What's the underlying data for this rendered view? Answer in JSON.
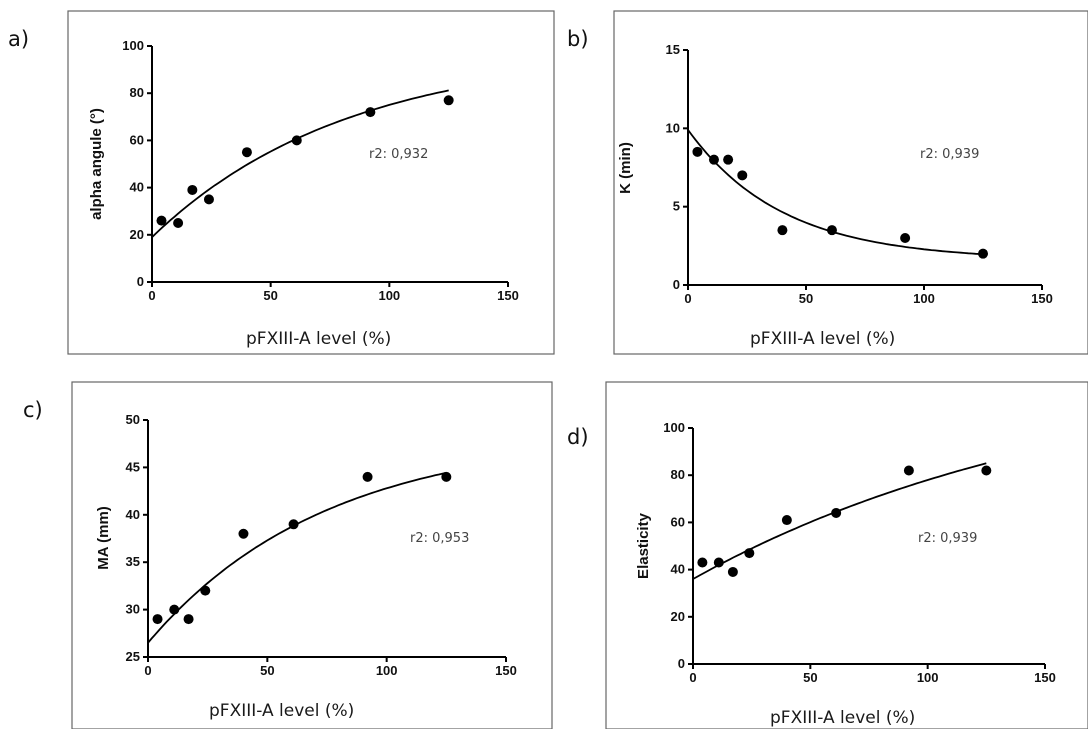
{
  "chart_data": [
    {
      "type": "scatter",
      "panel_label": "a)",
      "title": "",
      "xlabel": "pFXIII-A level (%)",
      "ylabel": "alpha angule (°)",
      "xlim": [
        0,
        150
      ],
      "ylim": [
        0,
        100
      ],
      "xticks": [
        0,
        50,
        100,
        150
      ],
      "yticks": [
        0,
        20,
        40,
        60,
        80,
        100
      ],
      "points": {
        "x": [
          4,
          11,
          17,
          24,
          40,
          61,
          92,
          125
        ],
        "y": [
          26,
          25,
          39,
          35,
          55,
          60,
          72,
          77
        ]
      },
      "fit": {
        "type": "one-phase exponential",
        "x_range": [
          0,
          125
        ],
        "y0": 19,
        "plateau": 98.5,
        "k": 0.0122
      },
      "annotation": "r2: 0,932",
      "grid": false
    },
    {
      "type": "scatter",
      "panel_label": "b)",
      "title": "",
      "xlabel": "pFXIII-A level (%)",
      "ylabel": "K (min)",
      "xlim": [
        0,
        150
      ],
      "ylim": [
        0,
        15
      ],
      "xticks": [
        0,
        50,
        100,
        150
      ],
      "yticks": [
        0,
        5,
        10,
        15
      ],
      "points": {
        "x": [
          4,
          11,
          17,
          23,
          40,
          61,
          92,
          125
        ],
        "y": [
          8.5,
          8,
          8,
          7,
          3.5,
          3.5,
          3,
          2
        ]
      },
      "fit": {
        "type": "one-phase exponential",
        "x_range": [
          0,
          125
        ],
        "y0": 9.9,
        "plateau": 1.6,
        "k": 0.025
      },
      "annotation": "r2: 0,939",
      "grid": false
    },
    {
      "type": "scatter",
      "panel_label": "c)",
      "title": "",
      "xlabel": "pFXIII-A level (%)",
      "ylabel": "MA (mm)",
      "xlim": [
        0,
        150
      ],
      "ylim": [
        25,
        50
      ],
      "xticks": [
        0,
        50,
        100,
        150
      ],
      "yticks": [
        25,
        30,
        35,
        40,
        45,
        50
      ],
      "points": {
        "x": [
          4,
          11,
          17,
          24,
          40,
          61,
          92,
          125
        ],
        "y": [
          29,
          30,
          29,
          32,
          38,
          39,
          44,
          44
        ]
      },
      "fit": {
        "type": "one-phase exponential",
        "x_range": [
          0,
          125
        ],
        "y0": 26.5,
        "plateau": 48.5,
        "k": 0.0135
      },
      "annotation": "r2: 0,953",
      "grid": false
    },
    {
      "type": "scatter",
      "panel_label": "d)",
      "title": "",
      "xlabel": "pFXIII-A level (%)",
      "ylabel": "Elasticity",
      "xlim": [
        0,
        150
      ],
      "ylim": [
        0,
        100
      ],
      "xticks": [
        0,
        50,
        100,
        150
      ],
      "yticks": [
        0,
        20,
        40,
        60,
        80,
        100
      ],
      "points": {
        "x": [
          4,
          11,
          17,
          24,
          40,
          61,
          92,
          125
        ],
        "y": [
          43,
          43,
          39,
          47,
          61,
          64,
          82,
          82
        ]
      },
      "fit": {
        "type": "one-phase exponential",
        "x_range": [
          0,
          125
        ],
        "y0": 36,
        "plateau": 129,
        "k": 0.006
      },
      "annotation": "r2: 0,939",
      "grid": false
    }
  ]
}
